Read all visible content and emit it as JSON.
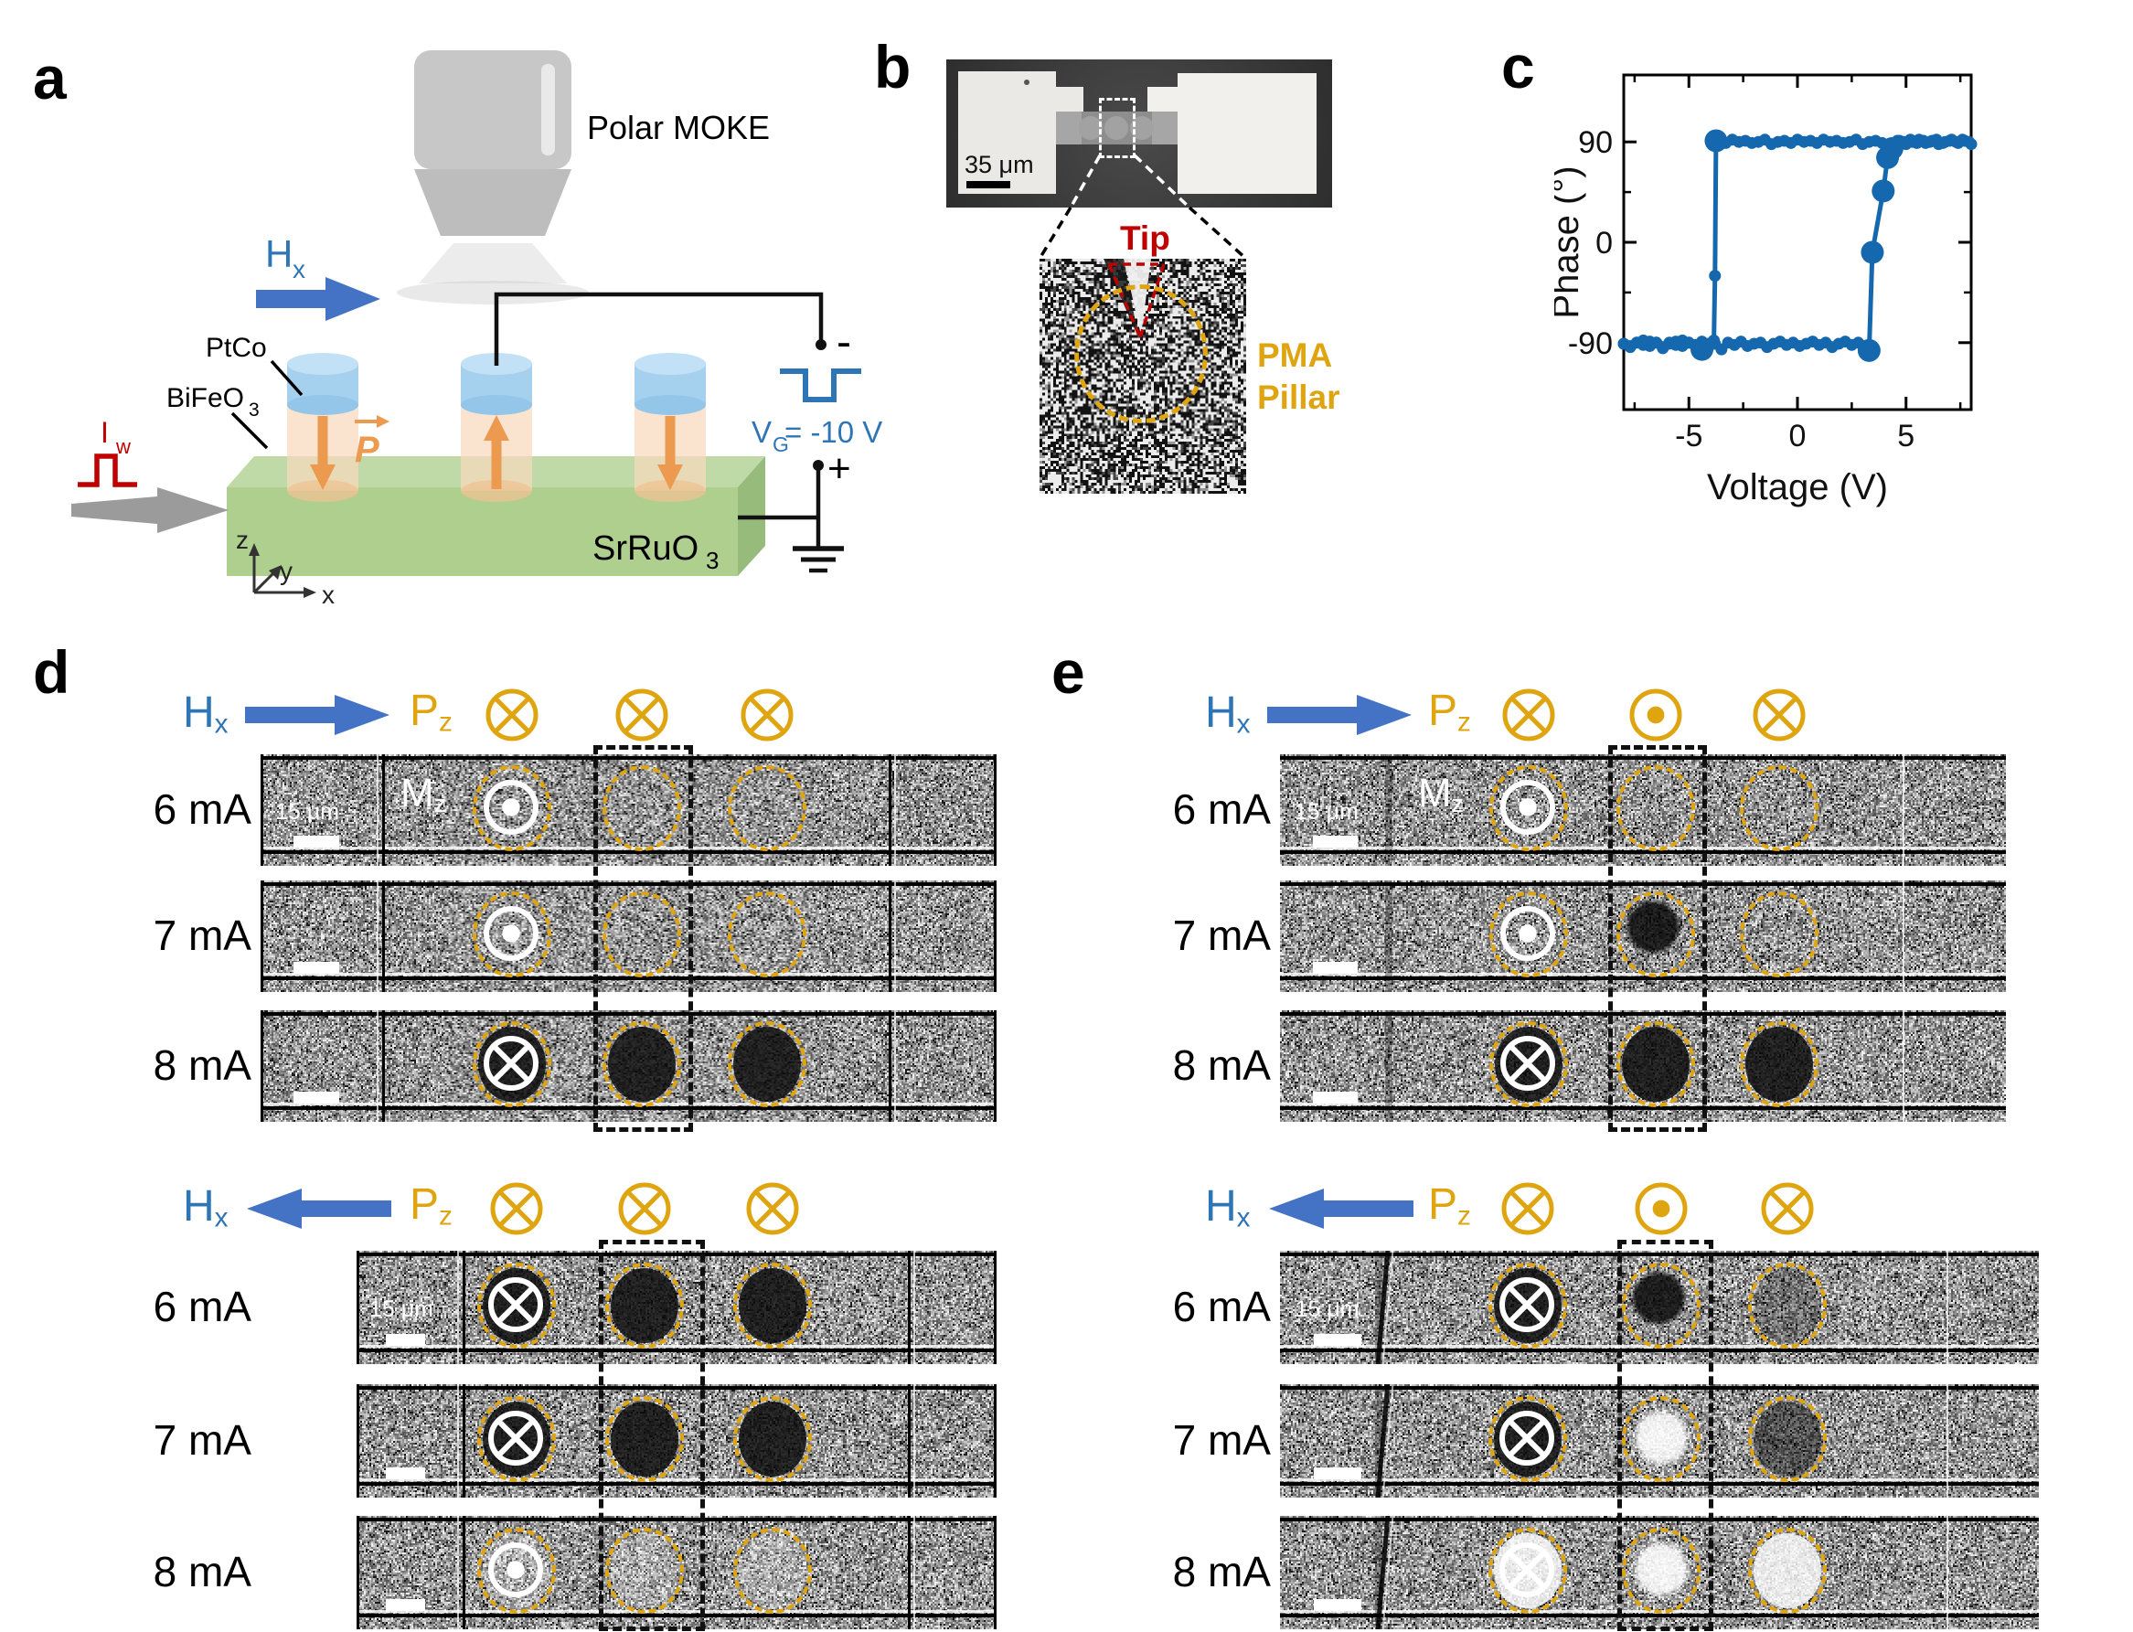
{
  "colors": {
    "accent_blue": "#2E75B6",
    "arrow_blue": "#4472C4",
    "gold": "#DFA511",
    "dark_red": "#C00000",
    "chart_blue": "#1568AE",
    "slab_green": "#AECF8E",
    "slab_green_top": "#BFDAA6",
    "slab_green_side": "#96BB7B",
    "cap_blue": "#A5D1EF",
    "cap_blue_top": "#C2E1F6",
    "cap_blue_bottom": "#93C6E8",
    "pillar_peach": "rgba(248,218,188,0.72)",
    "pillar_peach_bottom": "rgba(238,193,146,0.75)",
    "orange": "#EC9A4F",
    "gray_objective": "#C7C7C7",
    "gray_arrow": "#9B9B9B"
  },
  "panel_a": {
    "letter": "a",
    "polar_moke": "Polar MOKE",
    "hx": {
      "base": "H",
      "sub": "x"
    },
    "ptco": "PtCo",
    "bifeo3": {
      "base": "BiFeO",
      "sub": "3"
    },
    "iw": {
      "base": "I",
      "sub": "w"
    },
    "p_label": "P",
    "vg": {
      "base": "V",
      "sub": "G",
      "rest": " = -10 V"
    },
    "srruo3": {
      "base": "SrRuO",
      "sub": "3"
    },
    "minus": "-",
    "plus": "+",
    "axes": {
      "x": "x",
      "y": "y",
      "z": "z"
    }
  },
  "panel_b": {
    "letter": "b",
    "scale_label": "35 μm",
    "tip": "Tip",
    "pma_line1": "PMA",
    "pma_line2": "Pillar"
  },
  "panel_c": {
    "letter": "c"
  },
  "chart_data": {
    "type": "line",
    "title": "",
    "xlabel": "Voltage (V)",
    "ylabel": "Phase (°)",
    "xlim": [
      -8,
      8
    ],
    "ylim": [
      -150,
      150
    ],
    "xticks": [
      -5,
      0,
      5
    ],
    "xticks_minor": [
      -7.5,
      -2.5,
      2.5,
      7.5
    ],
    "yticks": [
      90,
      0,
      -90
    ],
    "yticks_minor": [
      45,
      -45
    ],
    "grid": false,
    "legend": null,
    "color": "#1568AE",
    "series": [
      {
        "name": "sweep_down",
        "points": [
          [
            8,
            88
          ],
          [
            7.7,
            91
          ],
          [
            7.4,
            89
          ],
          [
            7.1,
            92
          ],
          [
            6.8,
            90
          ],
          [
            6.5,
            88
          ],
          [
            6.2,
            91
          ],
          [
            5.9,
            89
          ],
          [
            5.6,
            92
          ],
          [
            5.3,
            90
          ],
          [
            5,
            88
          ],
          [
            4.7,
            91
          ],
          [
            4.4,
            86
          ],
          [
            4.1,
            83
          ],
          [
            3.9,
            89
          ],
          [
            3.6,
            91
          ],
          [
            3.3,
            90
          ],
          [
            3,
            88
          ],
          [
            2.7,
            92
          ],
          [
            2.4,
            90
          ],
          [
            2.1,
            89
          ],
          [
            1.8,
            91
          ],
          [
            1.5,
            90
          ],
          [
            1.2,
            92
          ],
          [
            0.9,
            89
          ],
          [
            0.6,
            91
          ],
          [
            0.3,
            90
          ],
          [
            0,
            92
          ],
          [
            -0.3,
            89
          ],
          [
            -0.6,
            91
          ],
          [
            -0.9,
            90
          ],
          [
            -1.2,
            88
          ],
          [
            -1.5,
            92
          ],
          [
            -1.8,
            90
          ],
          [
            -2.1,
            89
          ],
          [
            -2.4,
            91
          ],
          [
            -2.7,
            90
          ],
          [
            -3,
            92
          ],
          [
            -3.3,
            89
          ],
          [
            -3.6,
            91
          ],
          [
            -3.75,
            91
          ],
          [
            -3.8,
            -30
          ],
          [
            -3.85,
            -88
          ],
          [
            -4.1,
            -91
          ],
          [
            -4.4,
            -89
          ],
          [
            -4.7,
            -93
          ],
          [
            -5,
            -90
          ],
          [
            -5.3,
            -88
          ],
          [
            -5.6,
            -92
          ],
          [
            -5.9,
            -90
          ],
          [
            -6.2,
            -94
          ],
          [
            -6.5,
            -90
          ],
          [
            -6.8,
            -89
          ],
          [
            -7.1,
            -92
          ],
          [
            -7.4,
            -90
          ],
          [
            -7.7,
            -93
          ],
          [
            -8,
            -91
          ]
        ]
      },
      {
        "name": "sweep_up",
        "points": [
          [
            -8,
            -91
          ],
          [
            -7.7,
            -94
          ],
          [
            -7.4,
            -90
          ],
          [
            -7.1,
            -88
          ],
          [
            -6.8,
            -93
          ],
          [
            -6.5,
            -90
          ],
          [
            -6.2,
            -95
          ],
          [
            -5.9,
            -91
          ],
          [
            -5.6,
            -89
          ],
          [
            -5.3,
            -93
          ],
          [
            -5,
            -90
          ],
          [
            -4.7,
            -92
          ],
          [
            -4.4,
            -96
          ],
          [
            -4.1,
            -94
          ],
          [
            -3.8,
            -91
          ],
          [
            -3.5,
            -96
          ],
          [
            -3.2,
            -90
          ],
          [
            -2.9,
            -92
          ],
          [
            -2.6,
            -89
          ],
          [
            -2.3,
            -93
          ],
          [
            -2,
            -91
          ],
          [
            -1.7,
            -90
          ],
          [
            -1.4,
            -94
          ],
          [
            -1.1,
            -91
          ],
          [
            -0.8,
            -89
          ],
          [
            -0.5,
            -92
          ],
          [
            -0.2,
            -90
          ],
          [
            0.1,
            -93
          ],
          [
            0.4,
            -91
          ],
          [
            0.7,
            -89
          ],
          [
            1,
            -92
          ],
          [
            1.3,
            -90
          ],
          [
            1.6,
            -94
          ],
          [
            1.9,
            -91
          ],
          [
            2.2,
            -89
          ],
          [
            2.5,
            -92
          ],
          [
            2.8,
            -90
          ],
          [
            3.1,
            -93
          ],
          [
            3.3,
            -97
          ],
          [
            3.45,
            -9
          ],
          [
            3.95,
            46
          ],
          [
            4.15,
            76
          ],
          [
            4.3,
            88
          ],
          [
            4.6,
            91
          ],
          [
            4.9,
            90
          ],
          [
            5.2,
            92
          ],
          [
            5.5,
            89
          ],
          [
            5.8,
            91
          ],
          [
            6.1,
            90
          ],
          [
            6.4,
            92
          ],
          [
            6.7,
            89
          ],
          [
            7,
            91
          ],
          [
            7.3,
            90
          ],
          [
            7.6,
            92
          ],
          [
            7.9,
            90
          ]
        ]
      }
    ],
    "emphasis_points": [
      [
        -4.4,
        -96
      ],
      [
        3.3,
        -97
      ],
      [
        3.45,
        -9
      ],
      [
        3.95,
        46
      ],
      [
        4.15,
        76
      ],
      [
        -3.75,
        91
      ],
      [
        4.35,
        84
      ]
    ]
  },
  "panel_d": {
    "letter": "d",
    "groups": [
      {
        "id": "d-top",
        "hx": {
          "base": "H",
          "sub": "x",
          "direction": "right"
        },
        "pz": {
          "base": "P",
          "sub": "z"
        },
        "pz_symbols": [
          "into",
          "into",
          "into"
        ],
        "mz": {
          "base": "M",
          "sub": "z"
        },
        "rows": [
          {
            "current": "6 mA",
            "scale_label": "15 μm",
            "show_mz": true,
            "marker": "out",
            "fills": [
              "none",
              "none",
              "none"
            ]
          },
          {
            "current": "7 mA",
            "marker": "out",
            "fills": [
              "none",
              "none",
              "none"
            ]
          },
          {
            "current": "8 mA",
            "marker": "into",
            "fills": [
              "dark",
              "dark",
              "dark"
            ]
          }
        ]
      },
      {
        "id": "d-bottom",
        "hx": {
          "base": "H",
          "sub": "x",
          "direction": "left"
        },
        "pz": {
          "base": "P",
          "sub": "z"
        },
        "pz_symbols": [
          "into",
          "into",
          "into"
        ],
        "rows": [
          {
            "current": "6 mA",
            "scale_label": "15 μm",
            "marker": "into",
            "fills": [
              "dark",
              "dark",
              "dark"
            ]
          },
          {
            "current": "7 mA",
            "marker": "into",
            "fills": [
              "dark",
              "dark",
              "dark"
            ]
          },
          {
            "current": "8 mA",
            "marker": "out",
            "fills": [
              "faint-light",
              "faint-light",
              "faint-light"
            ]
          }
        ]
      }
    ]
  },
  "panel_e": {
    "letter": "e",
    "groups": [
      {
        "id": "e-top",
        "hx": {
          "base": "H",
          "sub": "x",
          "direction": "right"
        },
        "pz": {
          "base": "P",
          "sub": "z"
        },
        "pz_symbols": [
          "into",
          "out",
          "into"
        ],
        "mz": {
          "base": "M",
          "sub": "z"
        },
        "rows": [
          {
            "current": "6 mA",
            "scale_label": "15 μm",
            "show_mz": true,
            "marker": "out",
            "fills": [
              "none",
              "none",
              "none"
            ]
          },
          {
            "current": "7 mA",
            "marker": "out",
            "fills": [
              "none",
              "dark-partial",
              "none"
            ]
          },
          {
            "current": "8 mA",
            "marker": "into",
            "fills": [
              "dark",
              "dark",
              "dark"
            ]
          }
        ]
      },
      {
        "id": "e-bottom",
        "hx": {
          "base": "H",
          "sub": "x",
          "direction": "left"
        },
        "pz": {
          "base": "P",
          "sub": "z"
        },
        "pz_symbols": [
          "into",
          "out",
          "into"
        ],
        "rows": [
          {
            "current": "6 mA",
            "scale_label": "15 μm",
            "marker": "into",
            "fills": [
              "dark",
              "dark-partial",
              "faint-dark"
            ]
          },
          {
            "current": "7 mA",
            "marker": "into",
            "fills": [
              "dark",
              "light-partial",
              "mid-dark"
            ]
          },
          {
            "current": "8 mA",
            "marker": "into",
            "fills": [
              "light",
              "light-partial",
              "light"
            ]
          }
        ]
      }
    ]
  }
}
